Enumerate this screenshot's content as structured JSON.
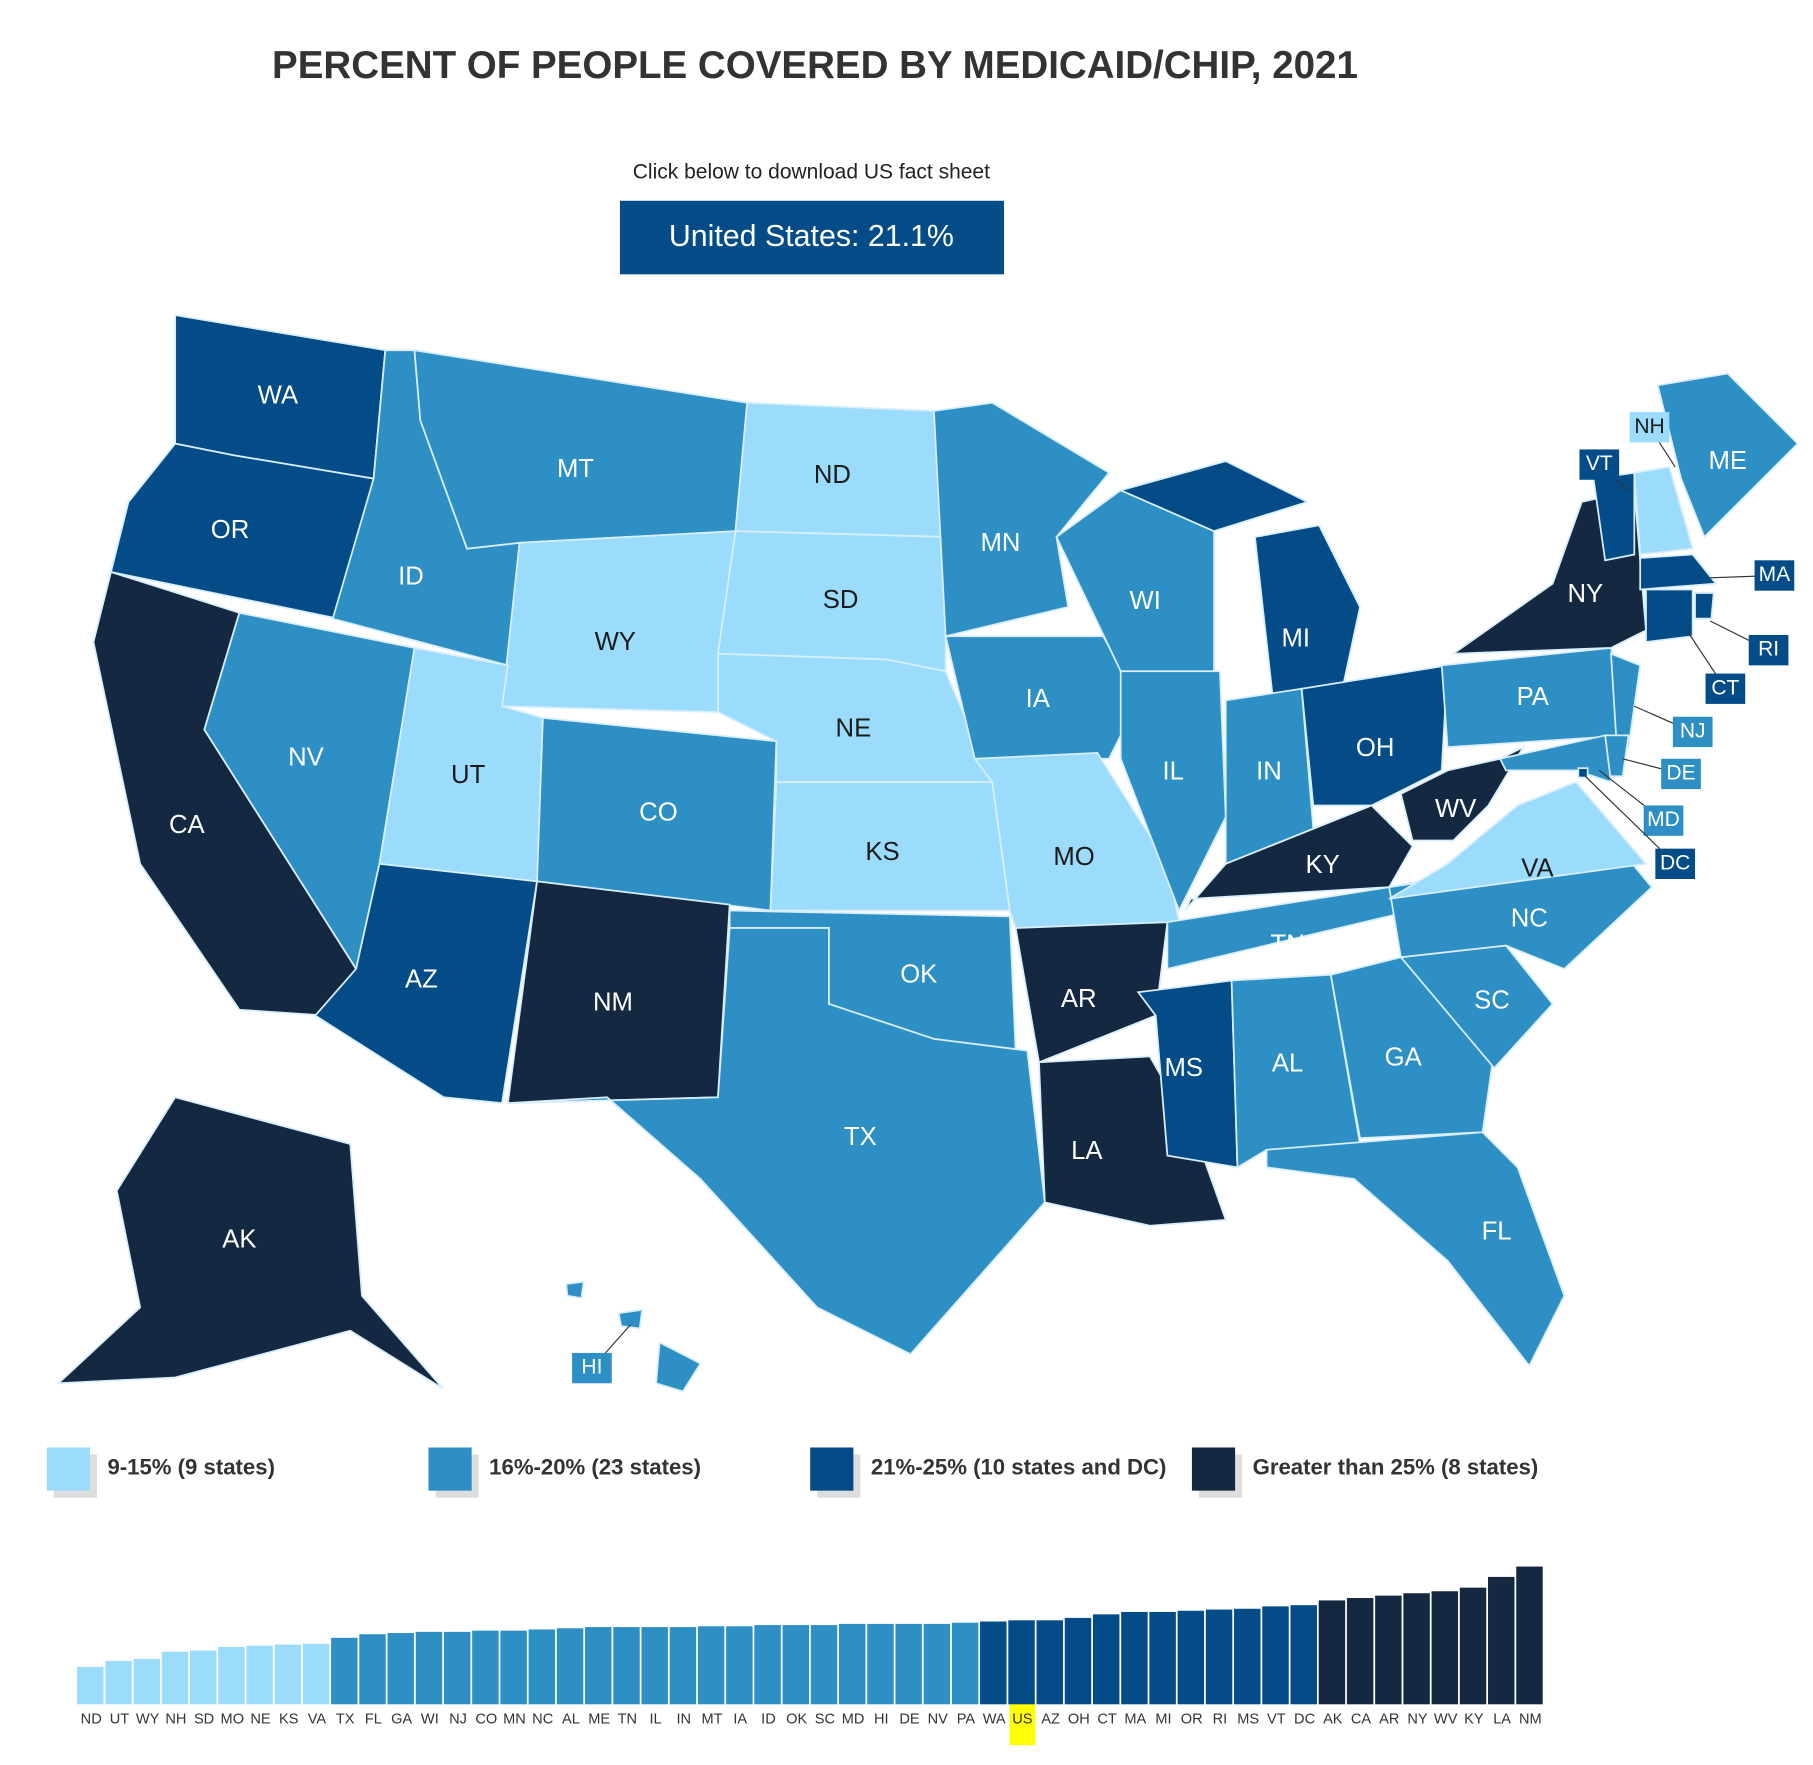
{
  "title": "PERCENT OF PEOPLE COVERED BY MEDICAID/CHIP, 2021",
  "subtitle": "Click below to download US fact sheet",
  "button": "United States: 21.1%",
  "legend": [
    {
      "label": "9-15% (9 states)",
      "color": "#9bdcfd"
    },
    {
      "label": "16%-20% (23 states)",
      "color": "#2d8fc4"
    },
    {
      "label": "21%-25% (10 states and DC)",
      "color": "#034c87"
    },
    {
      "label": "Greater than 25% (8 states)",
      "color": "#142941"
    }
  ],
  "states": [
    {
      "label": "WA",
      "color": "#034c87"
    },
    {
      "label": "OR",
      "color": "#034c87"
    },
    {
      "label": "CA",
      "color": "#142941"
    },
    {
      "label": "NV",
      "color": "#2d8fc4"
    },
    {
      "label": "ID",
      "color": "#2d8fc4"
    },
    {
      "label": "MT",
      "color": "#2d8fc4"
    },
    {
      "label": "WY",
      "color": "#9bdcfd"
    },
    {
      "label": "UT",
      "color": "#9bdcfd"
    },
    {
      "label": "CO",
      "color": "#2d8fc4"
    },
    {
      "label": "AZ",
      "color": "#034c87"
    },
    {
      "label": "NM",
      "color": "#142941"
    },
    {
      "label": "ND",
      "color": "#9bdcfd"
    },
    {
      "label": "SD",
      "color": "#9bdcfd"
    },
    {
      "label": "NE",
      "color": "#9bdcfd"
    },
    {
      "label": "KS",
      "color": "#9bdcfd"
    },
    {
      "label": "OK",
      "color": "#2d8fc4"
    },
    {
      "label": "TX",
      "color": "#2d8fc4"
    },
    {
      "label": "MN",
      "color": "#2d8fc4"
    },
    {
      "label": "IA",
      "color": "#2d8fc4"
    },
    {
      "label": "MO",
      "color": "#9bdcfd"
    },
    {
      "label": "AR",
      "color": "#142941"
    },
    {
      "label": "LA",
      "color": "#142941"
    },
    {
      "label": "WI",
      "color": "#2d8fc4"
    },
    {
      "label": "IL",
      "color": "#2d8fc4"
    },
    {
      "label": "MI",
      "color": "#034c87"
    },
    {
      "label": "IN",
      "color": "#2d8fc4"
    },
    {
      "label": "OH",
      "color": "#034c87"
    },
    {
      "label": "KY",
      "color": "#142941"
    },
    {
      "label": "TN",
      "color": "#2d8fc4"
    },
    {
      "label": "MS",
      "color": "#034c87"
    },
    {
      "label": "AL",
      "color": "#2d8fc4"
    },
    {
      "label": "GA",
      "color": "#2d8fc4"
    },
    {
      "label": "FL",
      "color": "#2d8fc4"
    },
    {
      "label": "SC",
      "color": "#2d8fc4"
    },
    {
      "label": "NC",
      "color": "#2d8fc4"
    },
    {
      "label": "VA",
      "color": "#9bdcfd"
    },
    {
      "label": "WV",
      "color": "#142941"
    },
    {
      "label": "PA",
      "color": "#2d8fc4"
    },
    {
      "label": "NY",
      "color": "#142941"
    },
    {
      "label": "NJ",
      "color": "#2d8fc4"
    },
    {
      "label": "DE",
      "color": "#2d8fc4"
    },
    {
      "label": "MD",
      "color": "#2d8fc4"
    },
    {
      "label": "DC",
      "color": "#034c87"
    },
    {
      "label": "VT",
      "color": "#034c87"
    },
    {
      "label": "NH",
      "color": "#9bdcfd"
    },
    {
      "label": "ME",
      "color": "#2d8fc4"
    },
    {
      "label": "MA",
      "color": "#034c87"
    },
    {
      "label": "CT",
      "color": "#034c87"
    },
    {
      "label": "RI",
      "color": "#034c87"
    },
    {
      "label": "AK",
      "color": "#142941"
    },
    {
      "label": "HI",
      "color": "#2d8fc4"
    }
  ],
  "chart_data": {
    "type": "bar",
    "categories": [
      "ND",
      "UT",
      "WY",
      "NH",
      "SD",
      "MO",
      "NE",
      "KS",
      "VA",
      "TX",
      "FL",
      "GA",
      "WI",
      "NJ",
      "CO",
      "MN",
      "NC",
      "AL",
      "ME",
      "TN",
      "IL",
      "IN",
      "MT",
      "IA",
      "ID",
      "OK",
      "SC",
      "MD",
      "HI",
      "DE",
      "NV",
      "PA",
      "WA",
      "US",
      "AZ",
      "OH",
      "CT",
      "MA",
      "MI",
      "OR",
      "RI",
      "MS",
      "VT",
      "DC",
      "AK",
      "CA",
      "AR",
      "NY",
      "WV",
      "KY",
      "LA",
      "NM"
    ],
    "values": [
      9.4,
      10.9,
      11.4,
      13.2,
      13.5,
      14.4,
      14.7,
      15.0,
      15.2,
      16.7,
      17.6,
      17.9,
      18.2,
      18.2,
      18.5,
      18.5,
      18.8,
      19.1,
      19.4,
      19.4,
      19.4,
      19.4,
      19.6,
      19.6,
      19.9,
      19.9,
      19.9,
      20.2,
      20.2,
      20.2,
      20.2,
      20.5,
      20.8,
      21.1,
      21.1,
      21.7,
      22.6,
      23.2,
      23.2,
      23.5,
      23.8,
      24.0,
      24.6,
      24.9,
      26.1,
      26.7,
      27.3,
      27.9,
      28.4,
      29.3,
      32.0,
      34.6
    ],
    "colors": [
      "#9bdcfd",
      "#9bdcfd",
      "#9bdcfd",
      "#9bdcfd",
      "#9bdcfd",
      "#9bdcfd",
      "#9bdcfd",
      "#9bdcfd",
      "#9bdcfd",
      "#2d8fc4",
      "#2d8fc4",
      "#2d8fc4",
      "#2d8fc4",
      "#2d8fc4",
      "#2d8fc4",
      "#2d8fc4",
      "#2d8fc4",
      "#2d8fc4",
      "#2d8fc4",
      "#2d8fc4",
      "#2d8fc4",
      "#2d8fc4",
      "#2d8fc4",
      "#2d8fc4",
      "#2d8fc4",
      "#2d8fc4",
      "#2d8fc4",
      "#2d8fc4",
      "#2d8fc4",
      "#2d8fc4",
      "#2d8fc4",
      "#2d8fc4",
      "#034c87",
      "#034c87",
      "#034c87",
      "#034c87",
      "#034c87",
      "#034c87",
      "#034c87",
      "#034c87",
      "#034c87",
      "#034c87",
      "#034c87",
      "#034c87",
      "#142941",
      "#142941",
      "#142941",
      "#142941",
      "#142941",
      "#142941",
      "#142941",
      "#142941"
    ],
    "highlight": "US",
    "highlight_color": "#ffff00"
  }
}
